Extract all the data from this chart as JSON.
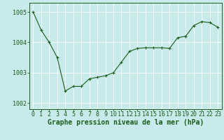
{
  "x": [
    0,
    1,
    2,
    3,
    4,
    5,
    6,
    7,
    8,
    9,
    10,
    11,
    12,
    13,
    14,
    15,
    16,
    17,
    18,
    19,
    20,
    21,
    22,
    23
  ],
  "y": [
    1005.0,
    1004.4,
    1004.0,
    1003.5,
    1002.4,
    1002.55,
    1002.55,
    1002.8,
    1002.85,
    1002.9,
    1003.0,
    1003.35,
    1003.7,
    1003.8,
    1003.82,
    1003.82,
    1003.82,
    1003.8,
    1004.15,
    1004.2,
    1004.55,
    1004.68,
    1004.65,
    1004.5
  ],
  "line_color": "#1a5c1a",
  "marker": "+",
  "background_color": "#c8eaea",
  "grid_color": "#ffffff",
  "xlabel": "Graphe pression niveau de la mer (hPa)",
  "ylim": [
    1001.8,
    1005.3
  ],
  "yticks": [
    1002,
    1003,
    1004,
    1005
  ],
  "xticks": [
    0,
    1,
    2,
    3,
    4,
    5,
    6,
    7,
    8,
    9,
    10,
    11,
    12,
    13,
    14,
    15,
    16,
    17,
    18,
    19,
    20,
    21,
    22,
    23
  ],
  "xlabel_fontsize": 7.0,
  "tick_fontsize": 6.0
}
